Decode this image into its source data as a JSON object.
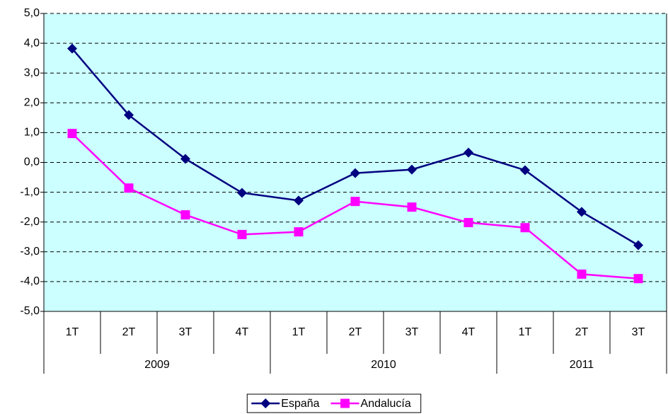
{
  "chart_data": {
    "type": "line",
    "categories": [
      "1T",
      "2T",
      "3T",
      "4T",
      "1T",
      "2T",
      "3T",
      "4T",
      "1T",
      "2T",
      "3T"
    ],
    "groups": [
      "2009",
      "2010",
      "2011"
    ],
    "group_sizes": [
      4,
      4,
      3
    ],
    "series": [
      {
        "name": "España",
        "color": "#000080",
        "marker": "diamond",
        "values": [
          3.82,
          1.59,
          0.12,
          -1.02,
          -1.28,
          -0.36,
          -0.24,
          0.33,
          -0.26,
          -1.66,
          -2.78
        ]
      },
      {
        "name": "Andalucía",
        "color": "#ff00ff",
        "marker": "square",
        "values": [
          0.97,
          -0.86,
          -1.76,
          -2.42,
          -2.33,
          -1.31,
          -1.5,
          -2.02,
          -2.19,
          -3.75,
          -3.9
        ]
      }
    ],
    "ylim": [
      -5,
      5
    ],
    "yticks": [
      {
        "value": -5,
        "label": "-5,0"
      },
      {
        "value": -4,
        "label": "-4,0"
      },
      {
        "value": -3,
        "label": "-3,0"
      },
      {
        "value": -2,
        "label": "-2,0"
      },
      {
        "value": -1,
        "label": "-1,0"
      },
      {
        "value": 0,
        "label": "0,0"
      },
      {
        "value": 1,
        "label": "1,0"
      },
      {
        "value": 2,
        "label": "2,0"
      },
      {
        "value": 3,
        "label": "3,0"
      },
      {
        "value": 4,
        "label": "4,0"
      },
      {
        "value": 5,
        "label": "5,0"
      }
    ],
    "grid": true,
    "legend": "bottom"
  }
}
